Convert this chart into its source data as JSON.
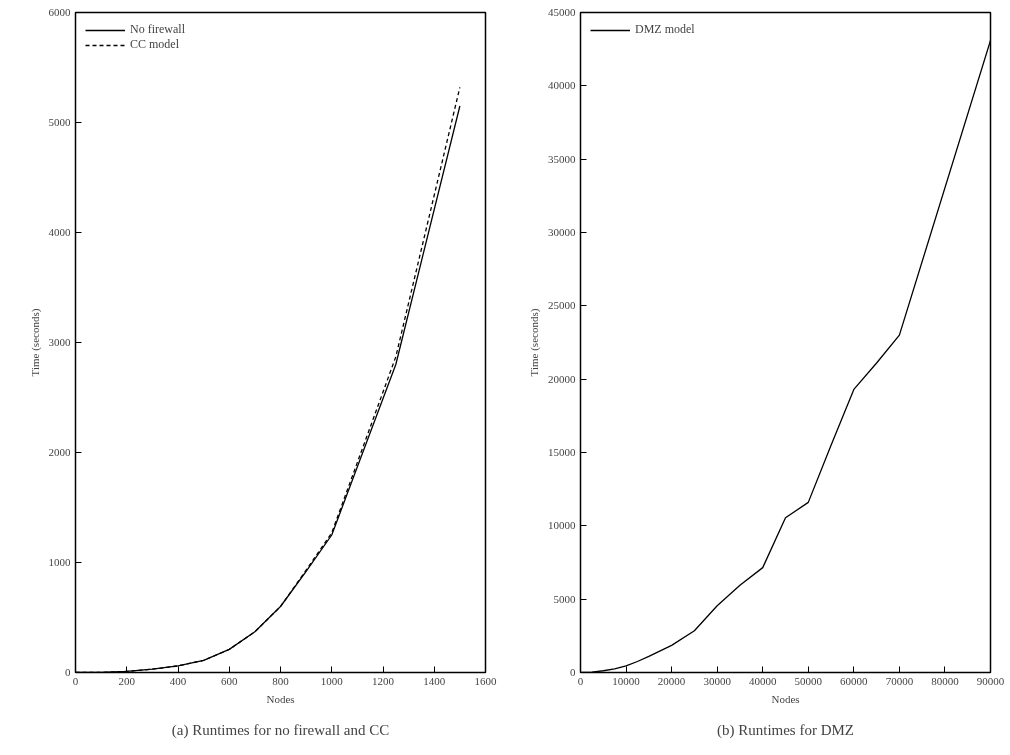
{
  "chart_data": [
    {
      "type": "line",
      "xlabel": "Nodes",
      "ylabel": "Time (seconds)",
      "xlim": [
        0,
        1600
      ],
      "ylim": [
        0,
        6000
      ],
      "xticks": [
        0,
        200,
        400,
        600,
        800,
        1000,
        1200,
        1400,
        1600
      ],
      "yticks": [
        0,
        1000,
        2000,
        3000,
        4000,
        5000,
        6000
      ],
      "x": [
        0,
        100,
        200,
        300,
        400,
        500,
        600,
        700,
        800,
        900,
        1000,
        1250,
        1500
      ],
      "series": [
        {
          "name": "No firewall",
          "color": "#000000",
          "line_style": "solid",
          "values": [
            0,
            0,
            10,
            30,
            60,
            110,
            210,
            370,
            600,
            920,
            1250,
            2800,
            5150
          ]
        },
        {
          "name": "CC model",
          "color": "#000000",
          "line_style": "dashed",
          "values": [
            0,
            0,
            10,
            30,
            60,
            110,
            210,
            370,
            600,
            930,
            1270,
            2870,
            5320
          ]
        }
      ],
      "legend": "top left",
      "grid": false,
      "annotations": [
        "(a) Runtimes for no firewall and CC"
      ]
    },
    {
      "type": "line",
      "xlabel": "Nodes",
      "ylabel": "Time (seconds)",
      "xlim": [
        0,
        90000
      ],
      "ylim": [
        0,
        45000
      ],
      "xticks": [
        0,
        10000,
        20000,
        30000,
        40000,
        50000,
        60000,
        70000,
        80000,
        90000
      ],
      "yticks": [
        0,
        5000,
        10000,
        15000,
        20000,
        25000,
        30000,
        35000,
        40000,
        45000
      ],
      "x": [
        0,
        2500,
        5000,
        7500,
        10000,
        12500,
        15000,
        20000,
        25000,
        30000,
        35000,
        40000,
        45000,
        50000,
        55000,
        60000,
        65000,
        70000,
        90000
      ],
      "series": [
        {
          "name": "DMZ model",
          "color": "#000000",
          "line_style": "solid",
          "values": [
            0,
            30,
            120,
            250,
            450,
            750,
            1100,
            1850,
            2850,
            4550,
            5950,
            7150,
            10550,
            11600,
            15500,
            19300,
            21100,
            23000,
            43100
          ]
        }
      ],
      "legend": "top left",
      "grid": false,
      "annotations": [
        "(b) Runtimes for DMZ"
      ]
    }
  ]
}
